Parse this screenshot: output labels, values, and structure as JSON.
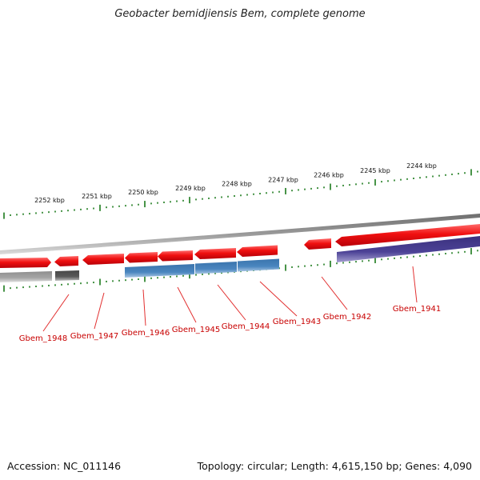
{
  "title": "Geobacter bemidjiensis Bem, complete genome",
  "footer": {
    "accession": "Accession: NC_011146",
    "stats": "Topology: circular; Length: 4,615,150 bp; Genes: 4,090"
  },
  "colors": {
    "forward_gene": "#e8141e",
    "blue_gene": "#4a86bf",
    "purple_gene": "#4c4296",
    "gray_gene": "#9c9c9c",
    "dark_gene": "#585858",
    "backbone": "#8a8a8a",
    "ticks": "#1a7a1a",
    "label": "#c80000"
  },
  "kbp_ticks": [
    "2252 kbp",
    "2251 kbp",
    "2250 kbp",
    "2249 kbp",
    "2248 kbp",
    "2247 kbp",
    "2246 kbp",
    "2245 kbp",
    "2244 kbp"
  ],
  "gene_labels": [
    "Gbem_1948",
    "Gbem_1947",
    "Gbem_1946",
    "Gbem_1945",
    "Gbem_1944",
    "Gbem_1943",
    "Gbem_1942",
    "Gbem_1941"
  ]
}
